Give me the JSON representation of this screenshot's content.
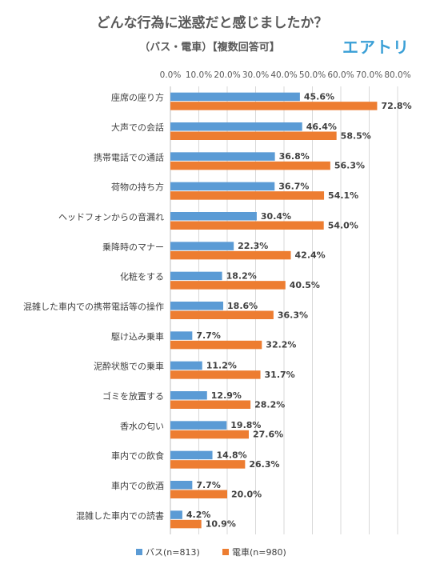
{
  "logo_text": "エアトリ",
  "colors": {
    "bus": "#5b9bd5",
    "train": "#ed7d31",
    "grid": "#d9d9d9",
    "axis": "#bfbfbf"
  },
  "chart_data": {
    "type": "bar",
    "orientation": "horizontal",
    "title": "どんな行為に迷惑だと感じましたか？",
    "subtitle": "（バス・電車）【複数回答可】",
    "xlim": [
      0,
      80
    ],
    "xticks": [
      "0.0%",
      "10.0%",
      "20.0%",
      "30.0%",
      "40.0%",
      "50.0%",
      "60.0%",
      "70.0%",
      "80.0%"
    ],
    "grid": true,
    "legend_position": "bottom",
    "categories": [
      "座席の座り方",
      "大声での会話",
      "携帯電話での通話",
      "荷物の持ち方",
      "ヘッドフォンからの音漏れ",
      "乗降時のマナー",
      "化粧をする",
      "混雑した車内での携帯電話等の操作",
      "駆け込み乗車",
      "泥酔状態での乗車",
      "ゴミを放置する",
      "香水の匂い",
      "車内での飲食",
      "車内での飲酒",
      "混雑した車内での読書"
    ],
    "series": [
      {
        "name": "バス(n=813)",
        "values": [
          45.6,
          46.4,
          36.8,
          36.7,
          30.4,
          22.3,
          18.2,
          18.6,
          7.7,
          11.2,
          12.9,
          19.8,
          14.8,
          7.7,
          4.2
        ],
        "labels": [
          "45.6%",
          "46.4%",
          "36.8%",
          "36.7%",
          "30.4%",
          "22.3%",
          "18.2%",
          "18.6%",
          "7.7%",
          "11.2%",
          "12.9%",
          "19.8%",
          "14.8%",
          "7.7%",
          "4.2%"
        ]
      },
      {
        "name": "電車(n=980)",
        "values": [
          72.8,
          58.5,
          56.3,
          54.1,
          54.0,
          42.4,
          40.5,
          36.3,
          32.2,
          31.7,
          28.2,
          27.6,
          26.3,
          20.0,
          10.9
        ],
        "labels": [
          "72.8%",
          "58.5%",
          "56.3%",
          "54.1%",
          "54.0%",
          "42.4%",
          "40.5%",
          "36.3%",
          "32.2%",
          "31.7%",
          "28.2%",
          "27.6%",
          "26.3%",
          "20.0%",
          "10.9%"
        ]
      }
    ]
  }
}
